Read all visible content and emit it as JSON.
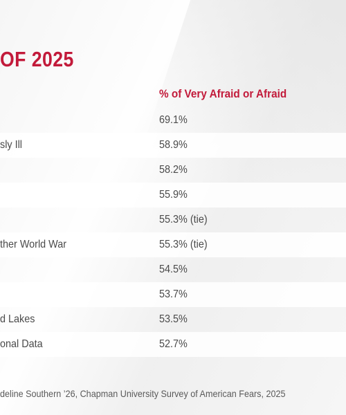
{
  "title": "OF 2025",
  "column_header": "% of Very Afraid or Afraid",
  "rows": [
    {
      "label": "",
      "value": "69.1%"
    },
    {
      "label": "sly Ill",
      "value": "58.9%"
    },
    {
      "label": "",
      "value": "58.2%"
    },
    {
      "label": "",
      "value": "55.9%"
    },
    {
      "label": "",
      "value": "55.3% (tie)"
    },
    {
      "label": "ther World War",
      "value": "55.3% (tie)"
    },
    {
      "label": "",
      "value": "54.5%"
    },
    {
      "label": "",
      "value": "53.7%"
    },
    {
      "label": "d Lakes",
      "value": "53.5%"
    },
    {
      "label": "onal Data",
      "value": "52.7%"
    }
  ],
  "source": "deline Southern ’26, Chapman University Survey of American Fears, 2025"
}
